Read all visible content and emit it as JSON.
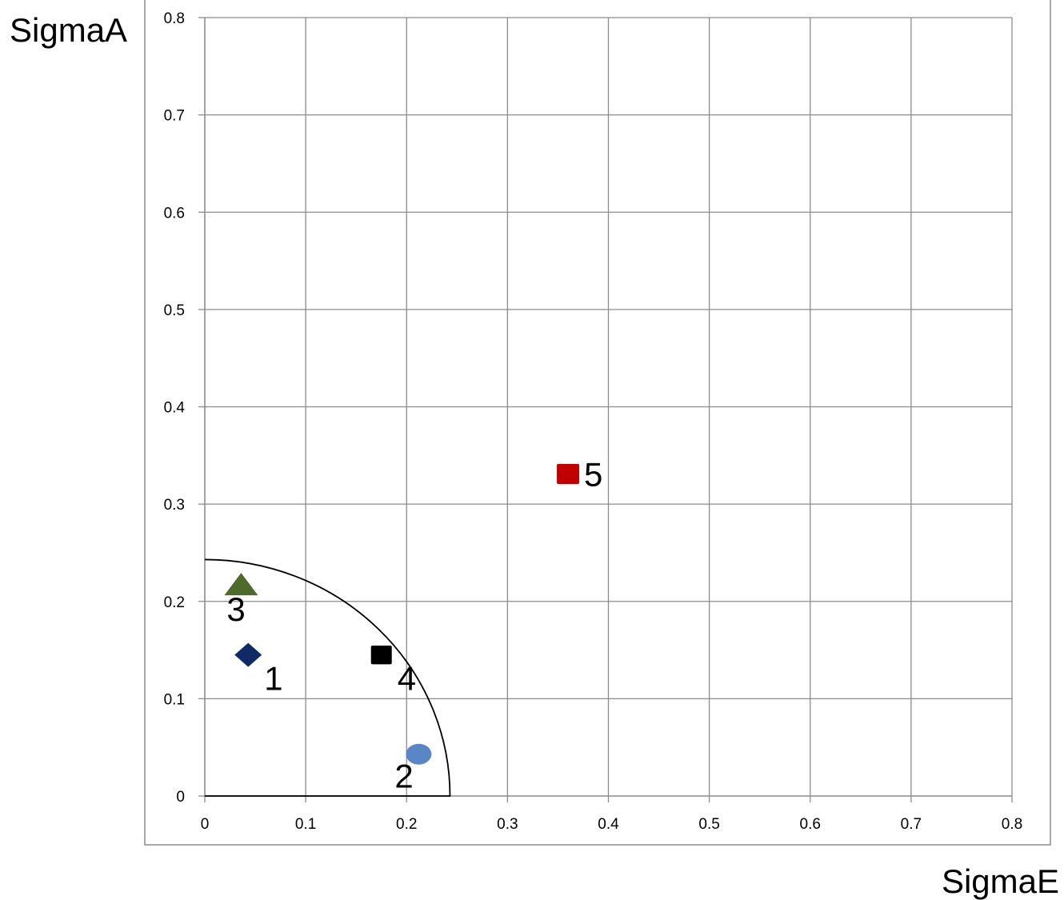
{
  "chart_data": {
    "type": "scatter",
    "xlabel": "SigmaE",
    "ylabel": "SigmaA",
    "xlim": [
      0,
      0.8
    ],
    "ylim": [
      0,
      0.8
    ],
    "x_ticks": [
      "0",
      "0.1",
      "0.2",
      "0.3",
      "0.4",
      "0.5",
      "0.6",
      "0.7",
      "0.8"
    ],
    "y_ticks": [
      "0",
      "0.1",
      "0.2",
      "0.3",
      "0.4",
      "0.5",
      "0.6",
      "0.7",
      "0.8"
    ],
    "grid": true,
    "reference_arc": {
      "radius": 0.243,
      "color": "#000000"
    },
    "points": [
      {
        "label": "1",
        "x": 0.043,
        "y": 0.145,
        "marker": "diamond",
        "color": "#0f2a66",
        "label_pos": "bottom-right"
      },
      {
        "label": "2",
        "x": 0.212,
        "y": 0.043,
        "marker": "circle",
        "color": "#5b86c6",
        "label_pos": "bottom-left"
      },
      {
        "label": "3",
        "x": 0.036,
        "y": 0.217,
        "marker": "triangle",
        "color": "#4e6a2c",
        "label_pos": "bottom"
      },
      {
        "label": "4",
        "x": 0.175,
        "y": 0.145,
        "marker": "square",
        "color": "#000000",
        "label_pos": "bottom-right"
      },
      {
        "label": "5",
        "x": 0.36,
        "y": 0.331,
        "marker": "square",
        "color": "#c00000",
        "label_pos": "right"
      }
    ]
  }
}
